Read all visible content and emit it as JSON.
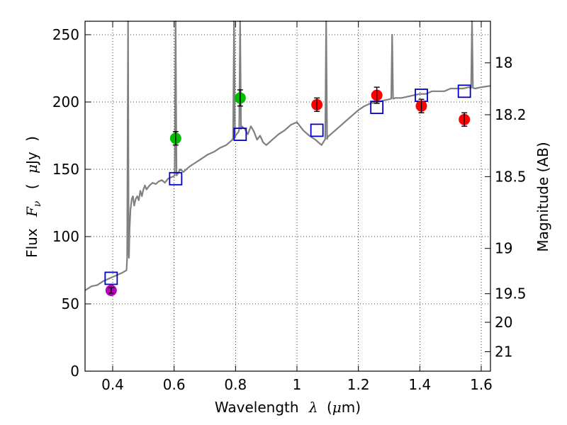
{
  "chart_data": {
    "type": "scatter",
    "xlabel_text": "Wavelength",
    "xlabel_symbol": "λ",
    "xlabel_unit_open": "(",
    "xlabel_unit_mu": "μ",
    "xlabel_unit_rest": "m)",
    "ylabel_text": "Flux",
    "ylabel_symbol": "F",
    "ylabel_subscript": "ν",
    "ylabel_unit_open": "(",
    "ylabel_unit_mu": "μ",
    "ylabel_unit_rest": "Jy",
    "ylabel_unit_close": ")",
    "y2label": "Magnitude (AB)",
    "xlim": [
      0.31,
      1.63
    ],
    "ylim": [
      0,
      260
    ],
    "grid": true,
    "x_ticks": [
      0.4,
      0.6,
      0.8,
      1.0,
      1.2,
      1.4,
      1.6
    ],
    "x_tick_labels": [
      "0.4",
      "0.6",
      "0.8",
      "1",
      "1.2",
      "1.4",
      "1.6"
    ],
    "y_ticks": [
      0,
      50,
      100,
      150,
      200,
      250
    ],
    "y_tick_labels": [
      "0",
      "50",
      "100",
      "150",
      "200",
      "250"
    ],
    "mag_ticks": [
      18,
      18.2,
      18.5,
      19,
      19.5,
      20,
      21
    ],
    "mag_tick_labels": [
      "18",
      "18.2",
      "18.5",
      "19",
      "19.5",
      "20",
      "21"
    ],
    "spectrum": {
      "name": "model spectrum",
      "color": "#808080",
      "x": [
        0.31,
        0.33,
        0.35,
        0.37,
        0.39,
        0.41,
        0.43,
        0.445,
        0.452,
        0.455,
        0.458,
        0.462,
        0.466,
        0.47,
        0.475,
        0.48,
        0.485,
        0.49,
        0.495,
        0.5,
        0.505,
        0.51,
        0.52,
        0.53,
        0.54,
        0.55,
        0.56,
        0.57,
        0.58,
        0.59,
        0.6,
        0.61,
        0.62,
        0.63,
        0.65,
        0.67,
        0.69,
        0.71,
        0.73,
        0.75,
        0.77,
        0.79,
        0.8,
        0.81,
        0.82,
        0.83,
        0.84,
        0.85,
        0.86,
        0.87,
        0.88,
        0.89,
        0.9,
        0.92,
        0.94,
        0.96,
        0.98,
        1.0,
        1.02,
        1.04,
        1.06,
        1.07,
        1.08,
        1.1,
        1.12,
        1.14,
        1.16,
        1.18,
        1.2,
        1.22,
        1.24,
        1.26,
        1.28,
        1.3,
        1.32,
        1.34,
        1.36,
        1.38,
        1.4,
        1.42,
        1.44,
        1.46,
        1.48,
        1.5,
        1.52,
        1.54,
        1.56,
        1.58,
        1.6,
        1.63
      ],
      "y": [
        60,
        63,
        64,
        67,
        69,
        71,
        73,
        75,
        88,
        105,
        120,
        128,
        130,
        123,
        128,
        130,
        127,
        134,
        130,
        135,
        138,
        135,
        138,
        140,
        139,
        141,
        142,
        140,
        143,
        144,
        145,
        146,
        150,
        148,
        152,
        155,
        158,
        161,
        163,
        166,
        168,
        172,
        175,
        178,
        182,
        180,
        176,
        182,
        178,
        172,
        175,
        170,
        168,
        172,
        176,
        179,
        183,
        185,
        179,
        175,
        172,
        170,
        168,
        174,
        178,
        182,
        186,
        190,
        194,
        197,
        199,
        200,
        201,
        202,
        203,
        203,
        204,
        205,
        206,
        206,
        208,
        208,
        208,
        210,
        210,
        210,
        211,
        210,
        211,
        212
      ]
    },
    "emission_spikes": [
      {
        "x": 0.45,
        "peak": 260
      },
      {
        "x": 0.605,
        "peak": 260
      },
      {
        "x": 0.795,
        "peak": 260
      },
      {
        "x": 0.815,
        "peak": 260
      },
      {
        "x": 1.095,
        "peak": 260
      },
      {
        "x": 1.31,
        "peak": 250
      },
      {
        "x": 1.57,
        "peak": 260
      }
    ],
    "observed": {
      "name": "observed photometry",
      "points": [
        {
          "x": 0.395,
          "y": 60,
          "err": 2,
          "color": "#bb00bb"
        },
        {
          "x": 0.605,
          "y": 173,
          "err": 5,
          "color": "#00bb00"
        },
        {
          "x": 0.815,
          "y": 203,
          "err": 6,
          "color": "#00bb00"
        },
        {
          "x": 1.065,
          "y": 198,
          "err": 5,
          "color": "#ff0000"
        },
        {
          "x": 1.26,
          "y": 205,
          "err": 6,
          "color": "#ff0000"
        },
        {
          "x": 1.405,
          "y": 197,
          "err": 5,
          "color": "#ff0000"
        },
        {
          "x": 1.545,
          "y": 187,
          "err": 5,
          "color": "#ff0000"
        }
      ]
    },
    "model_photometry": {
      "name": "synthetic photometry",
      "color": "#0000cc",
      "points": [
        {
          "x": 0.395,
          "y": 69
        },
        {
          "x": 0.605,
          "y": 143
        },
        {
          "x": 0.815,
          "y": 176
        },
        {
          "x": 1.065,
          "y": 179
        },
        {
          "x": 1.26,
          "y": 196
        },
        {
          "x": 1.405,
          "y": 205
        },
        {
          "x": 1.545,
          "y": 208
        }
      ]
    }
  }
}
